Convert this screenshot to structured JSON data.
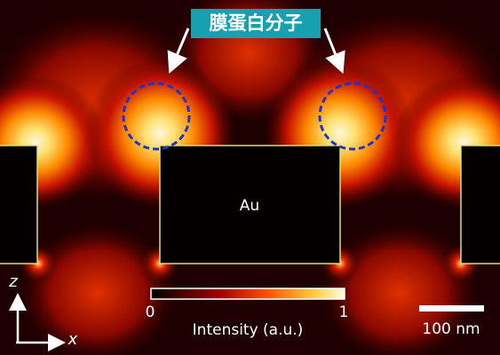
{
  "label": "膜蛋白分子",
  "material": "Au",
  "colorbar": {
    "min": 0,
    "max": 1,
    "title": "Intensity (a.u.)"
  },
  "scale_bar": "100 nm",
  "axes": {
    "vertical": "z",
    "horizontal": "x"
  }
}
